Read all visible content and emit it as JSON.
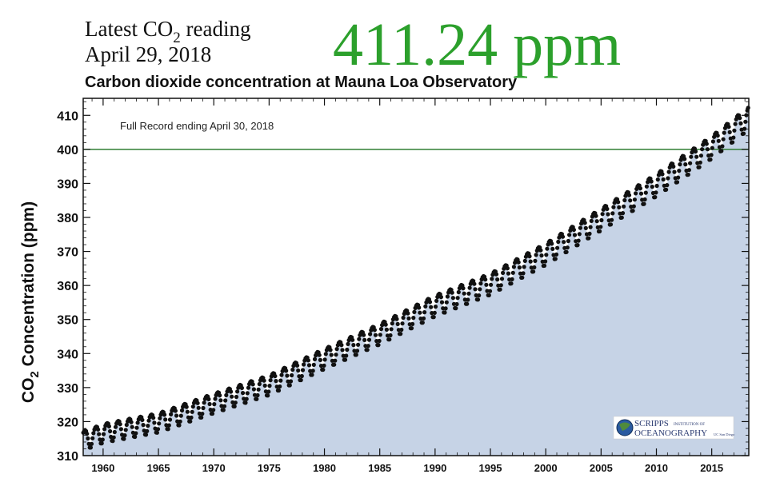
{
  "header": {
    "latest_prefix": "Latest CO",
    "latest_sub": "2",
    "latest_suffix": " reading",
    "date": "April 29, 2018",
    "reading": "411.24 ppm"
  },
  "colors": {
    "reading": "#2ca02c",
    "area_fill": "#c6d3e6",
    "threshold_line": "#2e7d32",
    "points": "#111111"
  },
  "logo": {
    "line1": "SCRIPPS",
    "line1_small": "INSTITUTION OF",
    "line2": "OCEANOGRAPHY",
    "line2_small": "UC San Diego"
  },
  "chart_data": {
    "type": "scatter",
    "title": "Carbon dioxide concentration at Mauna Loa Observatory",
    "ylabel_prefix": "CO",
    "ylabel_sub": "2",
    "ylabel_suffix": " Concentration (ppm)",
    "annotation": "Full Record ending April 30, 2018",
    "xlim": [
      1958.2,
      2018.35
    ],
    "ylim": [
      310,
      415
    ],
    "x_ticks": [
      1960,
      1965,
      1970,
      1975,
      1980,
      1985,
      1990,
      1995,
      2000,
      2005,
      2010,
      2015
    ],
    "x_tick_labels": [
      "1960",
      "1965",
      "1970",
      "1975",
      "1980",
      "1985",
      "1990",
      "1995",
      "2000",
      "2005",
      "2010",
      "2015"
    ],
    "y_ticks": [
      310,
      320,
      330,
      340,
      350,
      360,
      370,
      380,
      390,
      400,
      410
    ],
    "y_tick_labels": [
      "310",
      "320",
      "330",
      "340",
      "350",
      "360",
      "370",
      "380",
      "390",
      "400",
      "410"
    ],
    "reference_line": 400,
    "area_fill_under": true,
    "grid": false,
    "series": [
      {
        "annual_mean": {
          "x": [
            1958.5,
            1960,
            1965,
            1970,
            1975,
            1980,
            1985,
            1990,
            1995,
            2000,
            2005,
            2010,
            2015,
            2018.3
          ],
          "y": [
            315.0,
            316.9,
            320.0,
            325.7,
            331.1,
            338.8,
            346.1,
            354.4,
            360.8,
            369.6,
            379.8,
            389.9,
            401.0,
            409.5
          ]
        },
        "seasonal_amplitude_ppm": [
          5.6,
          6.8
        ]
      }
    ]
  }
}
